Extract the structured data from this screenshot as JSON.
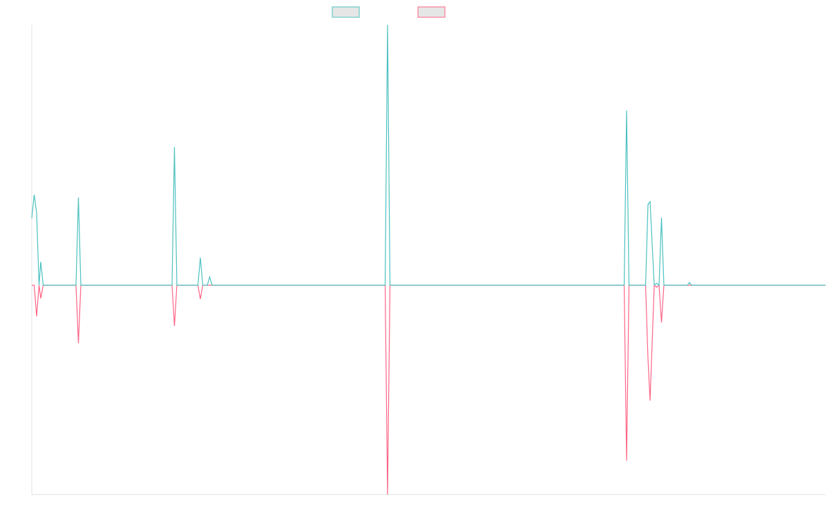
{
  "chart_data": {
    "type": "line",
    "x": [
      0,
      3.5,
      7,
      10.5,
      13,
      16.5,
      64,
      67.5,
      71,
      203,
      206.5,
      210,
      240.5,
      244,
      247.5,
      254,
      257.5,
      261,
      511.5,
      515,
      518.5,
      857.5,
      861,
      864.5,
      888.5,
      892,
      895,
      901,
      904.5,
      908,
      911.5,
      915,
      949,
      952,
      955,
      1149
    ],
    "series": [
      {
        "color": "#4bc0c0",
        "values": [
          97,
          131,
          105,
          0,
          34,
          0,
          0,
          127,
          0,
          0,
          200,
          0,
          0,
          40,
          0,
          0,
          12,
          0,
          0,
          377,
          0,
          0,
          253,
          0,
          0,
          117,
          121,
          0,
          3,
          0,
          98,
          0,
          0,
          4,
          0,
          0
        ]
      },
      {
        "color": "#ff6384",
        "values": [
          0,
          0,
          -45,
          0,
          -19,
          0,
          0,
          -84,
          0,
          0,
          -59,
          0,
          0,
          -20,
          0,
          0,
          0,
          0,
          0,
          -303,
          0,
          0,
          -254,
          0,
          0,
          -107,
          -167,
          0,
          -3,
          0,
          -54,
          0,
          0,
          0,
          0,
          0
        ]
      }
    ],
    "xlim": [
      0,
      1149
    ],
    "ylim": [
      -303,
      377
    ],
    "grid": false,
    "legend": "top"
  }
}
